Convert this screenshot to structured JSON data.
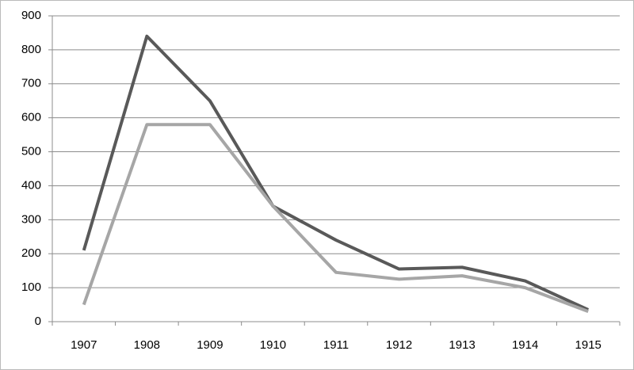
{
  "chart_data": {
    "type": "line",
    "categories": [
      "1907",
      "1908",
      "1909",
      "1910",
      "1911",
      "1912",
      "1913",
      "1914",
      "1915"
    ],
    "series": [
      {
        "color": "#595959",
        "values": [
          210,
          840,
          650,
          340,
          240,
          155,
          160,
          120,
          35
        ]
      },
      {
        "color": "#a6a6a6",
        "values": [
          50,
          580,
          580,
          340,
          145,
          125,
          135,
          100,
          30
        ]
      }
    ],
    "ylim": [
      0,
      900
    ],
    "yticks": [
      0,
      100,
      200,
      300,
      400,
      500,
      600,
      700,
      800,
      900
    ],
    "grid": true
  }
}
